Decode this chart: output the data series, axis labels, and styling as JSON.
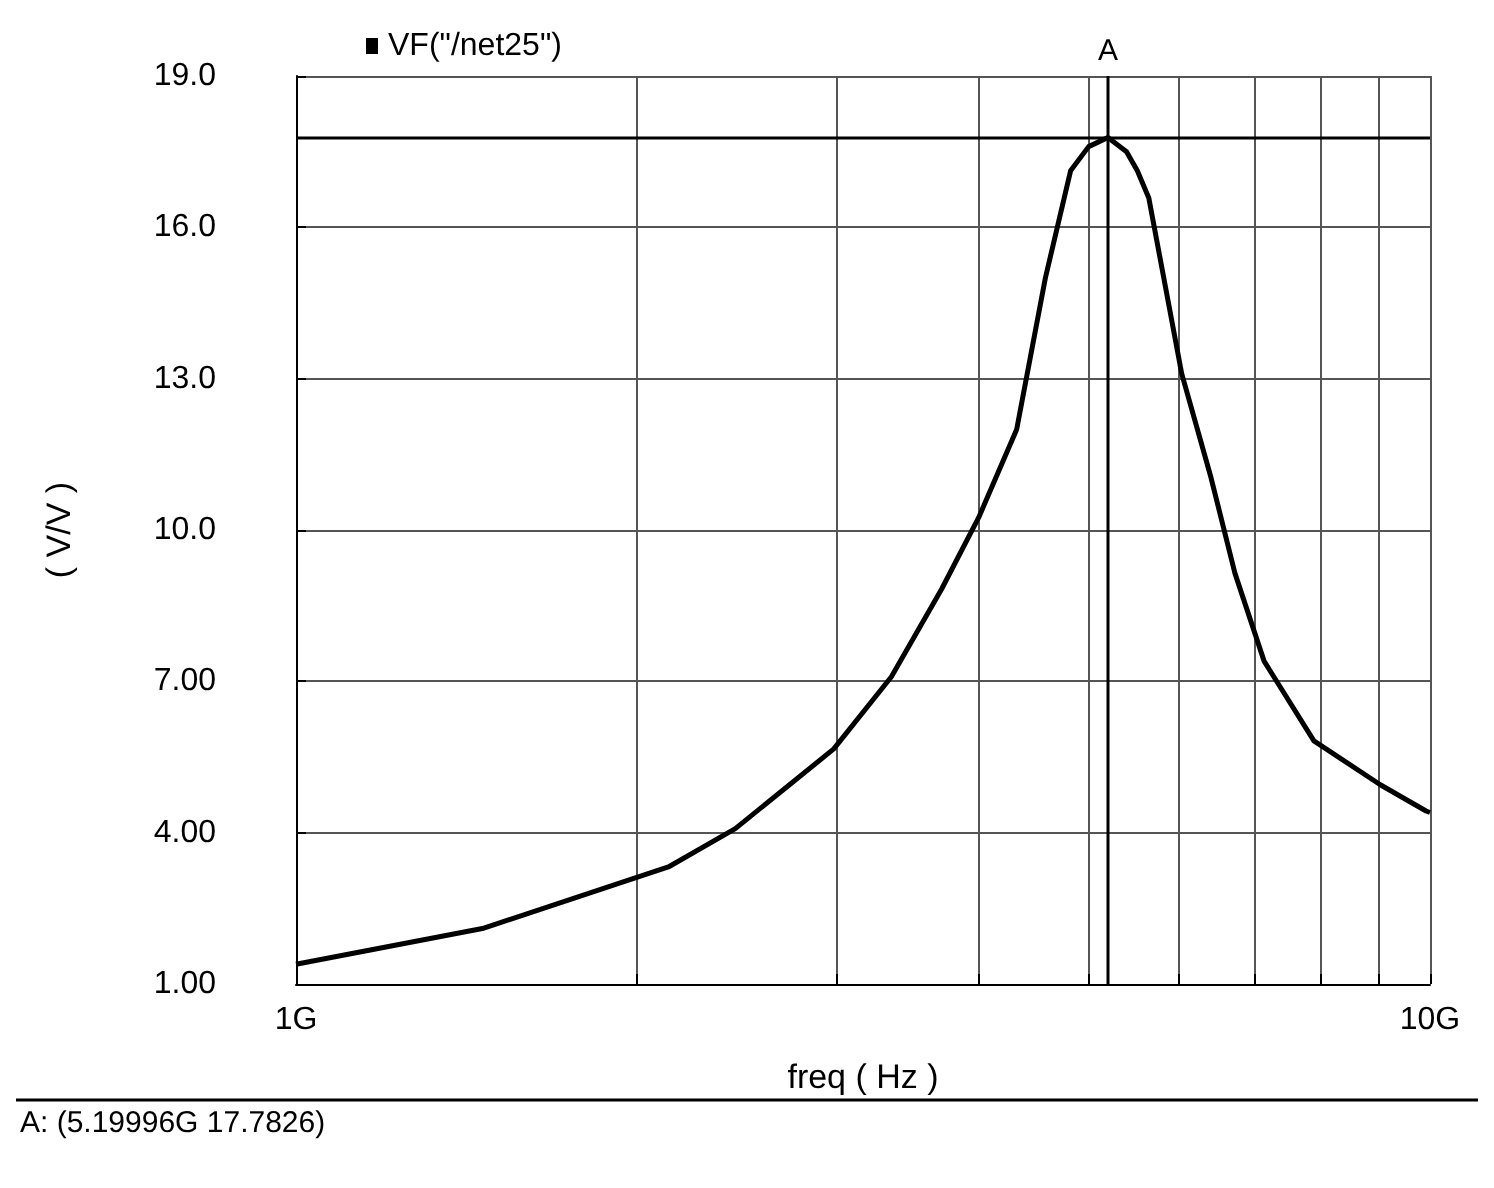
{
  "chart_data": {
    "type": "line",
    "xlabel": "freq ( Hz )",
    "ylabel": "( V/V )",
    "series": [
      {
        "name": "VF(\"/net25\")",
        "color": "#000000",
        "x": [
          1,
          1.46,
          2.13,
          2.44,
          2.98,
          3.35,
          3.71,
          4.0,
          4.32,
          4.58,
          4.82,
          5.0,
          5.2,
          5.4,
          5.52,
          5.65,
          6.04,
          6.41,
          6.73,
          7.14,
          7.9,
          9.04,
          9.92,
          10
        ],
        "values": [
          1.39,
          2.1,
          3.32,
          4.08,
          5.66,
          7.09,
          8.83,
          10.25,
          11.99,
          15.0,
          17.12,
          17.6,
          17.78,
          17.5,
          17.12,
          16.58,
          13.1,
          11.04,
          9.14,
          7.4,
          5.82,
          4.95,
          4.43,
          4.4
        ]
      }
    ],
    "log": "x",
    "xlim": [
      1,
      10
    ],
    "xticks": [
      {
        "value": 1,
        "label": "1G"
      },
      {
        "value": 2,
        "label": null
      },
      {
        "value": 3,
        "label": null
      },
      {
        "value": 4,
        "label": null
      },
      {
        "value": 5,
        "label": null
      },
      {
        "value": 6,
        "label": null
      },
      {
        "value": 7,
        "label": null
      },
      {
        "value": 8,
        "label": null
      },
      {
        "value": 9,
        "label": null
      },
      {
        "value": 10,
        "label": "10G"
      }
    ],
    "ylim": [
      1,
      19
    ],
    "yticks": [
      {
        "value": 1,
        "label": "1.00"
      },
      {
        "value": 4,
        "label": "4.00"
      },
      {
        "value": 7,
        "label": "7.00"
      },
      {
        "value": 10,
        "label": "10.0"
      },
      {
        "value": 13,
        "label": "13.0"
      },
      {
        "value": 16,
        "label": "16.0"
      },
      {
        "value": 19,
        "label": "19.0"
      }
    ],
    "grid": true,
    "legend": "top left",
    "marker": "none",
    "line_style": "solid",
    "ref_lines": [
      {
        "axis": "x",
        "value": 5.2,
        "label": "A"
      },
      {
        "axis": "y",
        "value": 17.78,
        "label": null
      }
    ],
    "annotations": [
      "A: (5.19996G 17.7826)"
    ]
  }
}
